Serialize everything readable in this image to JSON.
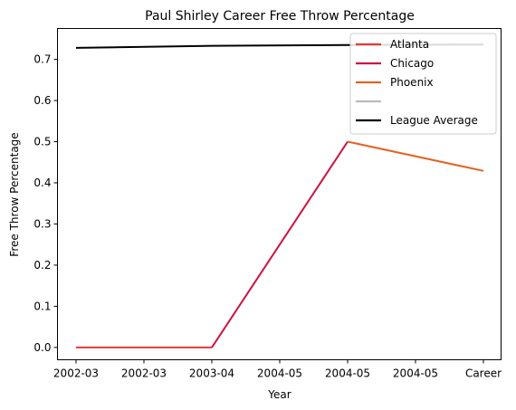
{
  "chart_data": {
    "type": "line",
    "title": "Paul Shirley Career Free Throw Percentage",
    "xlabel": "Year",
    "ylabel": "Free Throw Percentage",
    "categories": [
      "2002-03",
      "2002-03",
      "2003-04",
      "2004-05",
      "2004-05",
      "2004-05",
      "Career"
    ],
    "ylim": [
      -0.03,
      0.775
    ],
    "yticks": [
      0.0,
      0.1,
      0.2,
      0.3,
      0.4,
      0.5,
      0.6,
      0.7
    ],
    "ytick_labels": [
      "0.0",
      "0.1",
      "0.2",
      "0.3",
      "0.4",
      "0.5",
      "0.6",
      "0.7"
    ],
    "legend_position": "top-right",
    "grid": false,
    "series": [
      {
        "name": "Atlanta",
        "color": "#E03A3E",
        "points": [
          [
            0,
            0.0
          ],
          [
            2,
            0.0
          ]
        ]
      },
      {
        "name": "Chicago",
        "color": "#CE1141",
        "points": [
          [
            2,
            0.0
          ],
          [
            4,
            0.5
          ]
        ]
      },
      {
        "name": "Phoenix",
        "color": "#E56020",
        "points": [
          [
            4,
            0.5
          ],
          [
            6,
            0.429
          ]
        ]
      },
      {
        "name": "",
        "color": "#BBBBBB",
        "points": []
      },
      {
        "name": "League Average",
        "color": "#000000",
        "points": [
          [
            0,
            0.728
          ],
          [
            2,
            0.733
          ],
          [
            4,
            0.735
          ],
          [
            6,
            0.736
          ]
        ]
      }
    ]
  }
}
